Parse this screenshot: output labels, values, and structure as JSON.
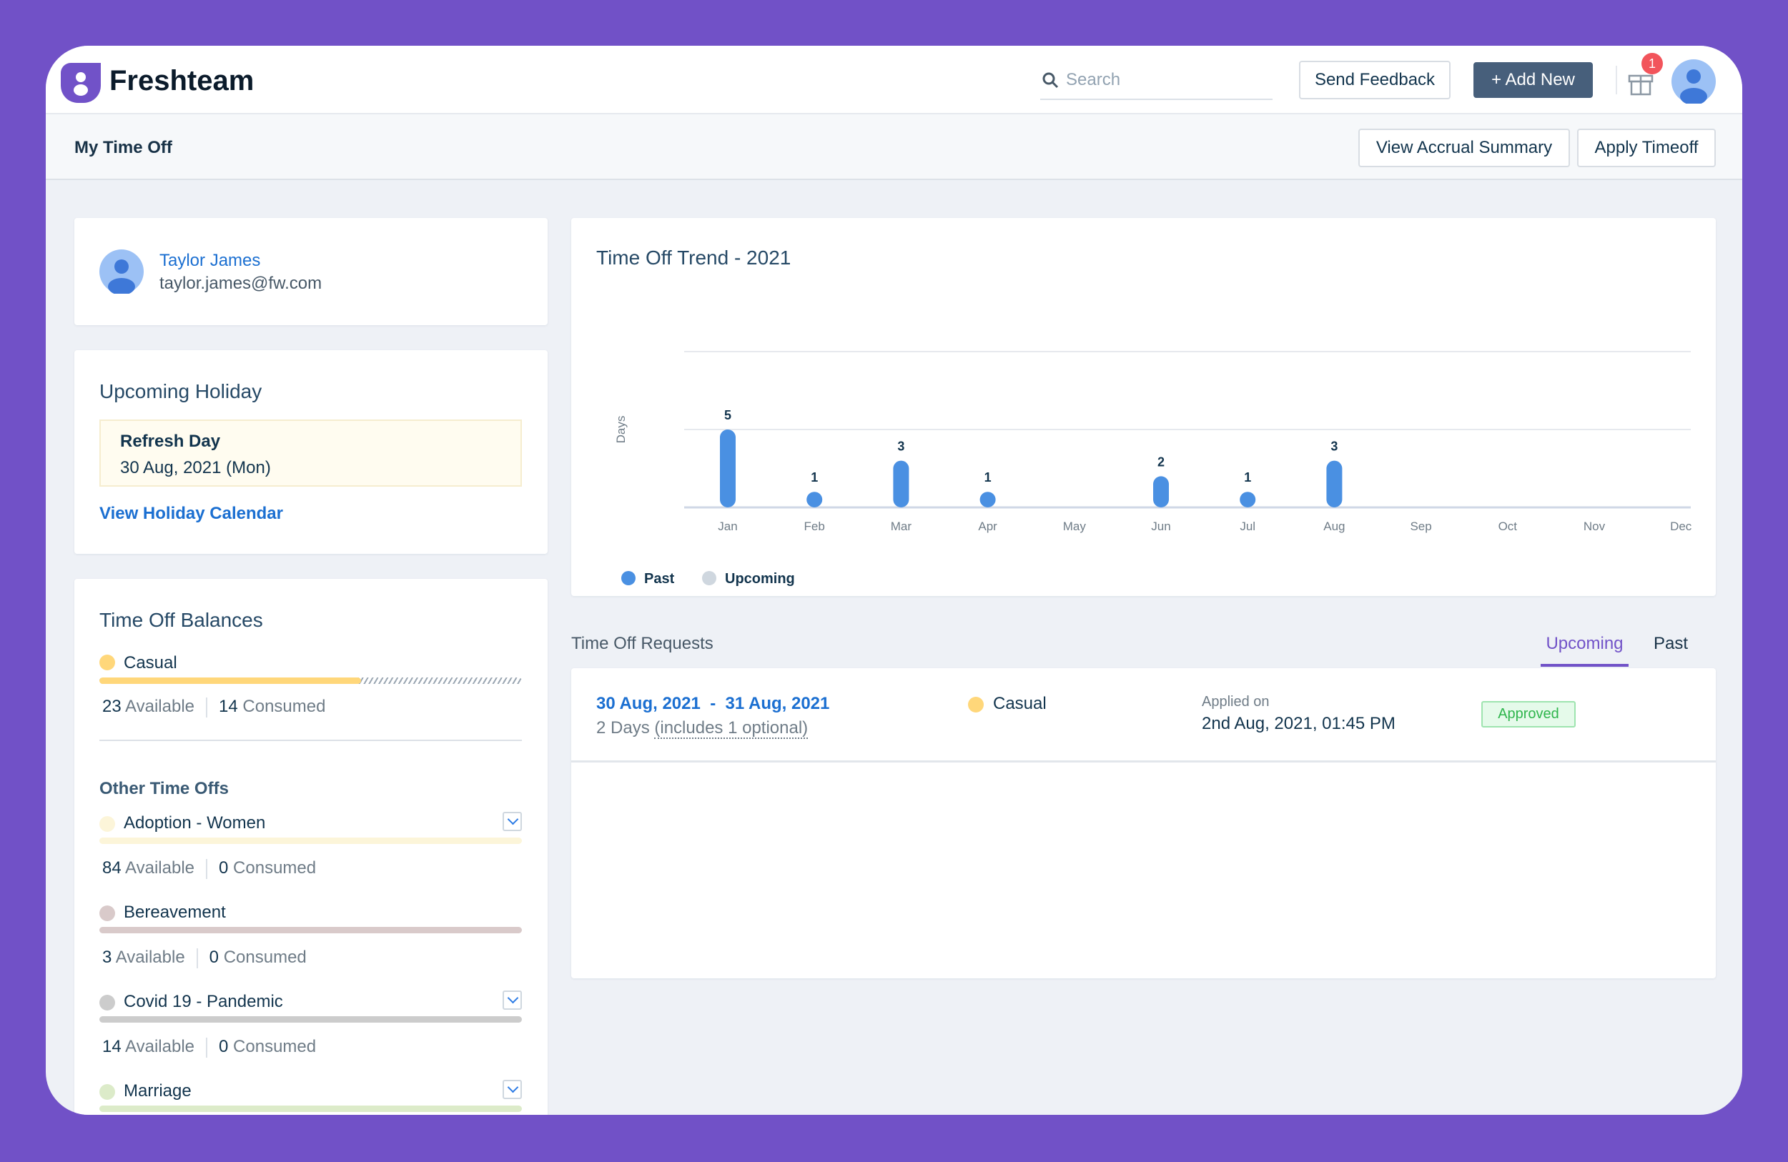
{
  "header": {
    "brand": "Freshteam",
    "search_placeholder": "Search",
    "send_feedback": "Send Feedback",
    "add_new": "+ Add New",
    "notification_count": "1"
  },
  "subheader": {
    "title": "My Time Off",
    "view_accrual": "View Accrual Summary",
    "apply_timeoff": "Apply Timeoff"
  },
  "profile": {
    "name": "Taylor James",
    "email": "taylor.james@fw.com"
  },
  "holiday": {
    "title": "Upcoming Holiday",
    "name": "Refresh Day",
    "date": "30 Aug, 2021 (Mon)",
    "link": "View Holiday Calendar"
  },
  "balances": {
    "title": "Time Off Balances",
    "casual": {
      "name": "Casual",
      "available": "23",
      "available_label": "Available",
      "consumed": "14",
      "consumed_label": "Consumed",
      "color": "#FFD77A",
      "available_fraction": 0.62
    },
    "other_title": "Other Time Offs",
    "others": [
      {
        "name": "Adoption - Women",
        "available": "84",
        "consumed": "0",
        "color": "#FCF5D9",
        "expandable": true
      },
      {
        "name": "Bereavement",
        "available": "3",
        "consumed": "0",
        "color": "#D9CACA",
        "expandable": false
      },
      {
        "name": "Covid 19 - Pandemic",
        "available": "14",
        "consumed": "0",
        "color": "#CCCCCC",
        "expandable": true
      },
      {
        "name": "Marriage",
        "available": "",
        "consumed": "",
        "color": "#DCEBC9",
        "expandable": true
      }
    ]
  },
  "chart_data": {
    "type": "bar",
    "title": "Time Off Trend - 2021",
    "ylabel": "Days",
    "ylim": [
      0,
      10
    ],
    "grid": true,
    "categories": [
      "Jan",
      "Feb",
      "Mar",
      "Apr",
      "May",
      "Jun",
      "Jul",
      "Aug",
      "Sep",
      "Oct",
      "Nov",
      "Dec"
    ],
    "series": [
      {
        "name": "Past",
        "color": "#4A90E2",
        "values": [
          5,
          1,
          3,
          1,
          0,
          2,
          1,
          3,
          0,
          0,
          0,
          0
        ]
      },
      {
        "name": "Upcoming",
        "color": "#CFD7DF",
        "values": [
          0,
          0,
          0,
          0,
          0,
          0,
          0,
          0,
          0,
          0,
          0,
          0
        ]
      }
    ],
    "legend": "bottom-left"
  },
  "requests": {
    "title": "Time Off Requests",
    "tabs": [
      {
        "label": "Upcoming",
        "active": true
      },
      {
        "label": "Past",
        "active": false
      }
    ],
    "items": [
      {
        "range": "30 Aug, 2021  -  31 Aug, 2021",
        "days": "2 Days",
        "optional": "(includes 1 optional)",
        "type": "Casual",
        "type_color": "#FFD77A",
        "applied_label": "Applied on",
        "applied": "2nd Aug, 2021, 01:45 PM",
        "status": "Approved"
      }
    ]
  }
}
